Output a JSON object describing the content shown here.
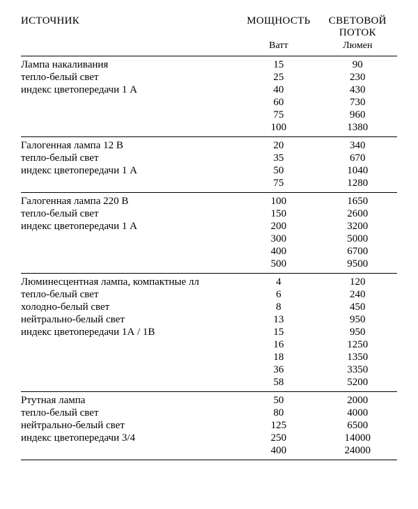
{
  "headers": {
    "source": "ИСТОЧНИК",
    "power": "МОЩНОСТЬ",
    "flux": "СВЕТОВОЙ ПОТОК",
    "power_unit": "Ватт",
    "flux_unit": "Люмен"
  },
  "styling": {
    "font_family": "Times New Roman",
    "header_fontsize_pt": 11,
    "body_fontsize_pt": 11,
    "text_color": "#000000",
    "background_color": "#ffffff",
    "rule_color": "#000000",
    "col_widths_pct": [
      58,
      21,
      21
    ],
    "numeric_align": "center",
    "source_align": "left"
  },
  "sections": [
    {
      "source_lines": [
        "Лампа накаливания",
        "тепло-белый свет",
        "индекс цветопередачи 1 А"
      ],
      "rows": [
        {
          "power": 15,
          "flux": 90
        },
        {
          "power": 25,
          "flux": 230
        },
        {
          "power": 40,
          "flux": 430
        },
        {
          "power": 60,
          "flux": 730
        },
        {
          "power": 75,
          "flux": 960
        },
        {
          "power": 100,
          "flux": 1380
        }
      ]
    },
    {
      "source_lines": [
        "Галогенная лампа 12 В",
        "тепло-белый свет",
        "индекс цветопередачи 1 А"
      ],
      "rows": [
        {
          "power": 20,
          "flux": 340
        },
        {
          "power": 35,
          "flux": 670
        },
        {
          "power": 50,
          "flux": 1040
        },
        {
          "power": 75,
          "flux": 1280
        }
      ]
    },
    {
      "source_lines": [
        "Галогенная лампа 220 В",
        "тепло-белый свет",
        "индекс цветопередачи 1 А"
      ],
      "rows": [
        {
          "power": 100,
          "flux": 1650
        },
        {
          "power": 150,
          "flux": 2600
        },
        {
          "power": 200,
          "flux": 3200
        },
        {
          "power": 300,
          "flux": 5000
        },
        {
          "power": 400,
          "flux": 6700
        },
        {
          "power": 500,
          "flux": 9500
        }
      ]
    },
    {
      "source_lines": [
        "Люминесцентная лампа, компактные лл",
        "тепло-белый свет",
        "холодно-белый свет",
        "нейтрально-белый свет",
        "индекс цветопередачи 1А / 1В"
      ],
      "rows": [
        {
          "power": 4,
          "flux": 120
        },
        {
          "power": 6,
          "flux": 240
        },
        {
          "power": 8,
          "flux": 450
        },
        {
          "power": 13,
          "flux": 950
        },
        {
          "power": 15,
          "flux": 950
        },
        {
          "power": 16,
          "flux": 1250
        },
        {
          "power": 18,
          "flux": 1350
        },
        {
          "power": 36,
          "flux": 3350
        },
        {
          "power": 58,
          "flux": 5200
        }
      ]
    },
    {
      "source_lines": [
        "Ртутная лампа",
        "тепло-белый свет",
        "нейтрально-белый свет",
        "индекс цветопередачи 3/4"
      ],
      "rows": [
        {
          "power": 50,
          "flux": 2000
        },
        {
          "power": 80,
          "flux": 4000
        },
        {
          "power": 125,
          "flux": 6500
        },
        {
          "power": 250,
          "flux": 14000
        },
        {
          "power": 400,
          "flux": 24000
        }
      ]
    }
  ]
}
